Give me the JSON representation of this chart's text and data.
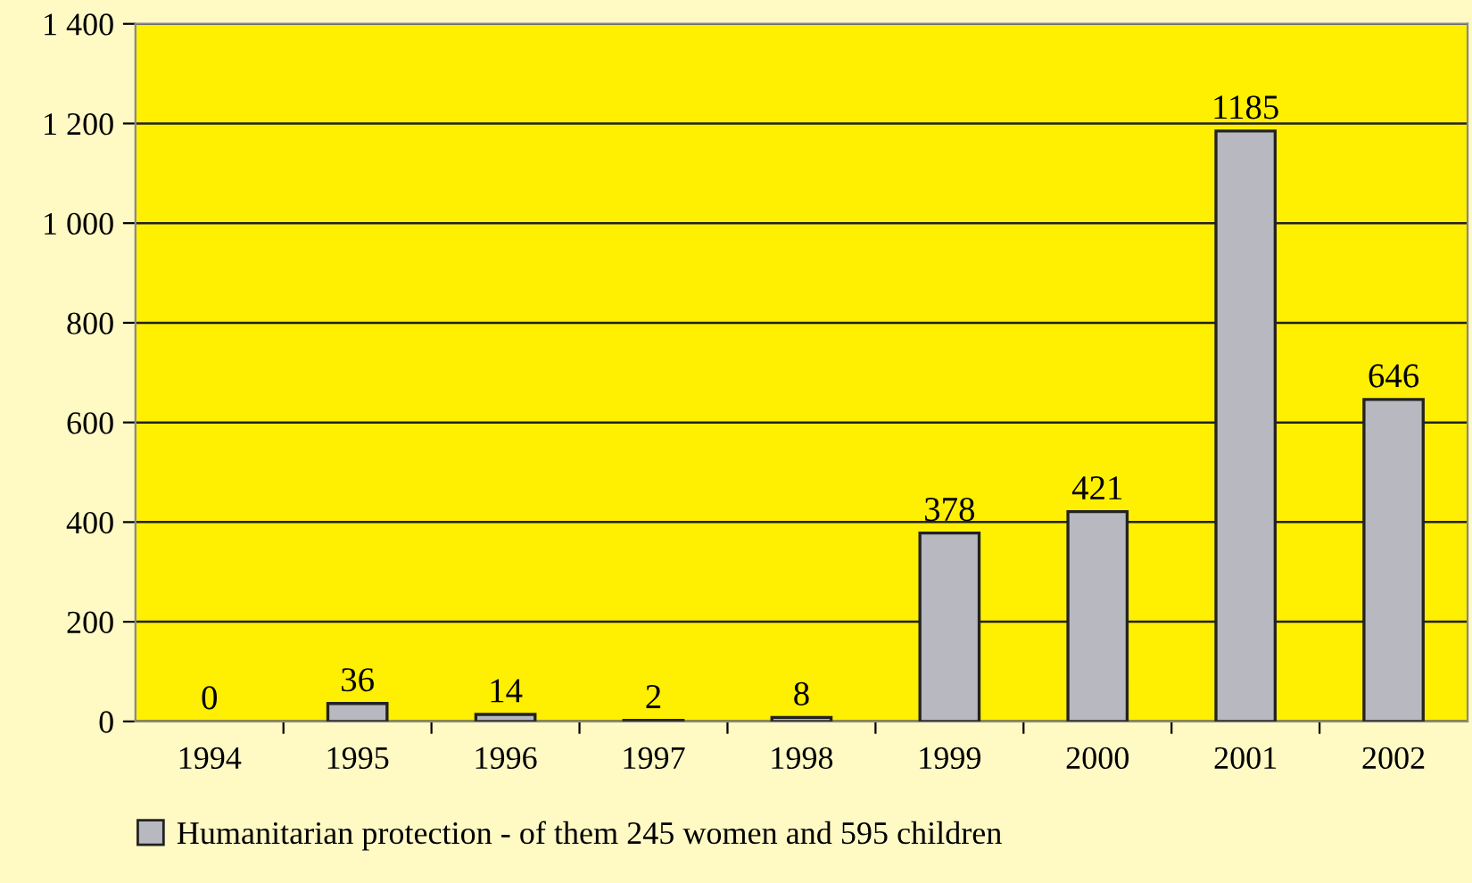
{
  "chart_data": {
    "type": "bar",
    "categories": [
      "1994",
      "1995",
      "1996",
      "1997",
      "1998",
      "1999",
      "2000",
      "2001",
      "2002"
    ],
    "series": [
      {
        "name": "Humanitarian protection - of them 245 women and 595 children",
        "color": "#b8b8c0",
        "values": [
          0,
          36,
          14,
          2,
          8,
          378,
          421,
          1185,
          646
        ]
      }
    ],
    "ylim": [
      0,
      1400
    ],
    "yticks": [
      0,
      200,
      400,
      600,
      800,
      {
        "value": 1000,
        "label": "1 000"
      },
      {
        "value": 1200,
        "label": "1 200"
      },
      {
        "value": 1400,
        "label": "1 400"
      }
    ],
    "grid": "y",
    "legend": "bottom left",
    "data_labels": true
  }
}
